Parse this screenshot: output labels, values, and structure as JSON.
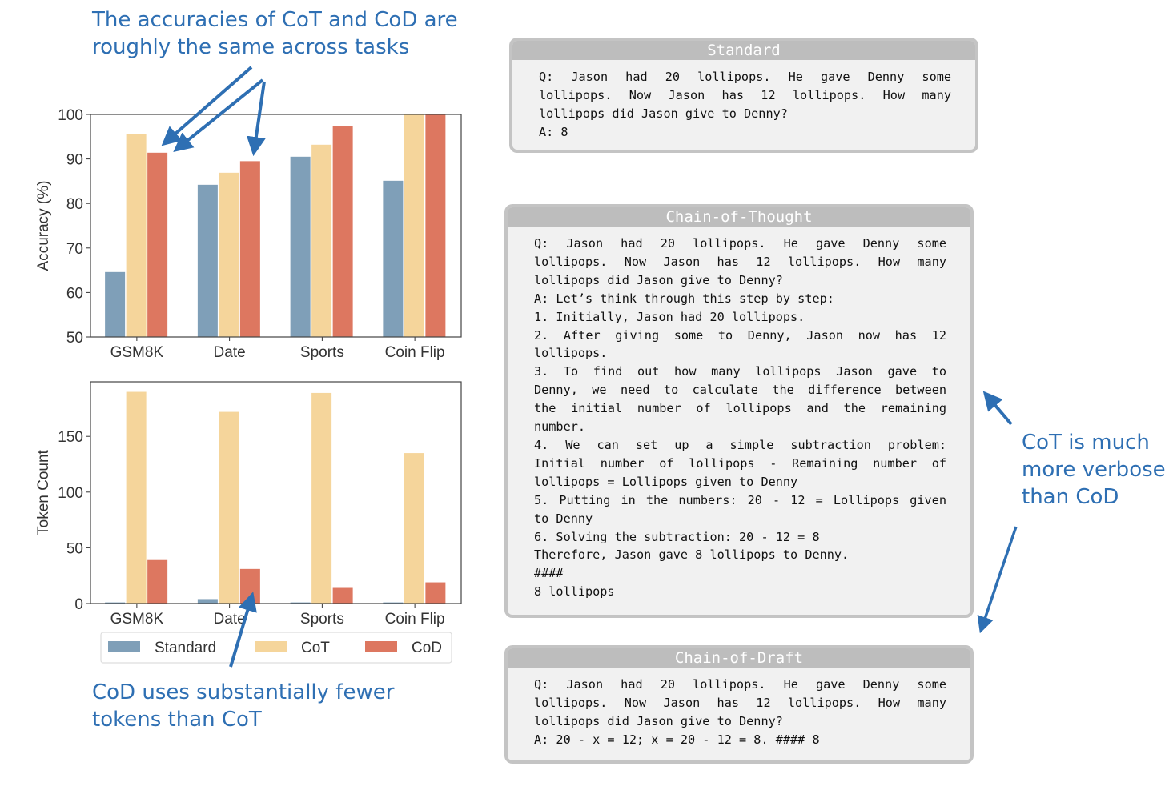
{
  "annotations": {
    "top": "The accuracies of CoT and CoD are\nroughly the same across tasks",
    "bottom": "CoD uses substantially fewer\ntokens than CoT",
    "right": "CoT is much\nmore verbose\nthan CoD",
    "color": "#2e6fb3"
  },
  "colors": {
    "Standard": "#7f9fb8",
    "CoT": "#f5d59b",
    "CoD": "#dd7760"
  },
  "legend": {
    "items": [
      "Standard",
      "CoT",
      "CoD"
    ]
  },
  "chart_data": [
    {
      "type": "bar",
      "title": "",
      "xlabel": "",
      "ylabel": "Accuracy (%)",
      "categories": [
        "GSM8K",
        "Date",
        "Sports",
        "Coin Flip"
      ],
      "series": [
        {
          "name": "Standard",
          "values": [
            64.6,
            84.2,
            90.5,
            85.1
          ]
        },
        {
          "name": "CoT",
          "values": [
            95.6,
            86.9,
            93.2,
            100.0
          ]
        },
        {
          "name": "CoD",
          "values": [
            91.4,
            89.5,
            97.3,
            100.0
          ]
        }
      ],
      "ylim": [
        50,
        100
      ],
      "yticks": [
        50,
        60,
        70,
        80,
        90,
        100
      ],
      "grid": false
    },
    {
      "type": "bar",
      "title": "",
      "xlabel": "",
      "ylabel": "Token Count",
      "categories": [
        "GSM8K",
        "Date",
        "Sports",
        "Coin Flip"
      ],
      "series": [
        {
          "name": "Standard",
          "values": [
            1,
            4,
            1,
            1
          ]
        },
        {
          "name": "CoT",
          "values": [
            190,
            172,
            189,
            135
          ]
        },
        {
          "name": "CoD",
          "values": [
            39,
            31,
            14,
            19
          ]
        }
      ],
      "ylim": [
        0,
        199
      ],
      "yticks": [
        0,
        50,
        100,
        150
      ],
      "grid": false,
      "legend_position": "below"
    }
  ],
  "boxes": [
    {
      "title": "Standard",
      "lines": [
        {
          "text": "Q: Jason had 20 lollipops.  He gave Denny some",
          "justify": true
        },
        {
          "text": "lollipops.  Now Jason has 12 lollipops.  How many",
          "justify": true
        },
        {
          "text": "lollipops did Jason give to Denny?",
          "justify": false
        },
        {
          "text": "A: 8",
          "justify": false
        }
      ]
    },
    {
      "title": "Chain-of-Thought",
      "lines": [
        {
          "text": "Q: Jason had 20 lollipops.  He gave Denny some",
          "justify": true
        },
        {
          "text": "lollipops.  Now Jason has 12 lollipops.  How many",
          "justify": true
        },
        {
          "text": "lollipops did Jason give to Denny?",
          "justify": false
        },
        {
          "text": "A: Let’s think through this step by step:",
          "justify": false
        },
        {
          "text": "1. Initially, Jason had 20 lollipops.",
          "justify": false
        },
        {
          "text": "2.  After giving some to Denny, Jason now has 12",
          "justify": true
        },
        {
          "text": "lollipops.",
          "justify": false
        },
        {
          "text": "3.  To find out how many lollipops Jason gave to",
          "justify": true
        },
        {
          "text": "Denny, we need to calculate the difference between",
          "justify": true
        },
        {
          "text": "the initial number of lollipops and the remaining",
          "justify": true
        },
        {
          "text": "number.",
          "justify": false
        },
        {
          "text": "4.  We can set up a simple subtraction problem:",
          "justify": true
        },
        {
          "text": "Initial number of lollipops - Remaining number of",
          "justify": true
        },
        {
          "text": "lollipops = Lollipops given to Denny",
          "justify": false
        },
        {
          "text": "5. Putting in the numbers: 20 - 12 = Lollipops given",
          "justify": true
        },
        {
          "text": "to Denny",
          "justify": false
        },
        {
          "text": "6. Solving the subtraction: 20 - 12 = 8",
          "justify": false
        },
        {
          "text": "Therefore, Jason gave 8 lollipops to Denny.",
          "justify": false
        },
        {
          "text": "####",
          "justify": false
        },
        {
          "text": "8 lollipops",
          "justify": false
        }
      ]
    },
    {
      "title": "Chain-of-Draft",
      "lines": [
        {
          "text": "Q: Jason had 20 lollipops.  He gave Denny some",
          "justify": true
        },
        {
          "text": "lollipops.  Now Jason has 12 lollipops.  How many",
          "justify": true
        },
        {
          "text": "lollipops did Jason give to Denny?",
          "justify": false
        },
        {
          "text": "A: 20 - x = 12; x = 20 - 12 = 8. #### 8",
          "justify": false
        }
      ]
    }
  ]
}
